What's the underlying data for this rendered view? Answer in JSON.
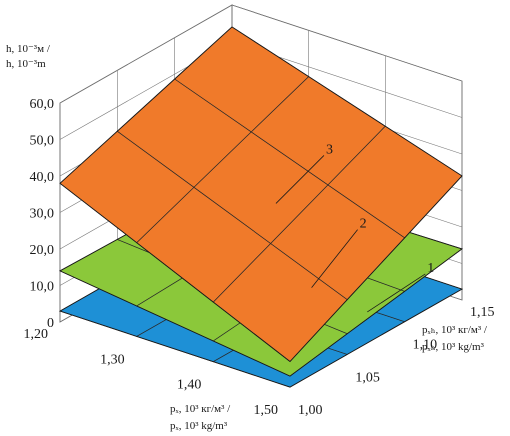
{
  "chart_data": {
    "type": "surface3d",
    "z_axis": {
      "label_line1": "h, 10⁻³м /",
      "label_line2": "h, 10⁻³m",
      "ticks": [
        "0",
        "10,0",
        "20,0",
        "30,0",
        "40,0",
        "50,0",
        "60,0"
      ],
      "range": [
        0,
        60
      ]
    },
    "x_axis": {
      "label_line1": "pₓ, 10³ кг/м³ /",
      "label_line2": "pₓ, 10³ kg/m³",
      "ticks": [
        "1,20",
        "1,30",
        "1,40",
        "1,50"
      ],
      "range": [
        1.2,
        1.5
      ]
    },
    "y_axis": {
      "label_line1": "pₓₕ, 10³ кг/м³ /",
      "label_line2": "pₓₕ, 10³ kg/m³",
      "ticks": [
        "1,00",
        "1,05",
        "1,10",
        "1,15"
      ],
      "range": [
        1.0,
        1.15
      ]
    },
    "series": [
      {
        "name": "1",
        "color": "#1e90d6",
        "corners": {
          "x_min_y_min": 3,
          "x_max_y_min": 3,
          "x_min_y_max": 3,
          "x_max_y_max": 3
        }
      },
      {
        "name": "2",
        "color": "#8bc83a",
        "corners": {
          "x_min_y_min": 14,
          "x_max_y_min": 6,
          "x_min_y_max": 13,
          "x_max_y_max": 14
        }
      },
      {
        "name": "3",
        "color": "#f07a2a",
        "corners": {
          "x_min_y_min": 38,
          "x_max_y_min": 10,
          "x_min_y_max": 54,
          "x_max_y_max": 34
        }
      }
    ],
    "grid": true
  }
}
